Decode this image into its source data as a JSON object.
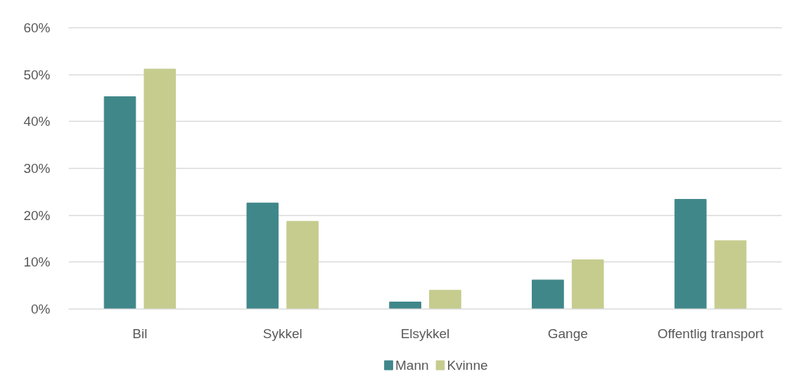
{
  "chart_data": {
    "type": "bar",
    "categories": [
      "Bil",
      "Sykkel",
      "Elsykkel",
      "Gange",
      "Offentlig transport"
    ],
    "series": [
      {
        "name": "Mann",
        "color": "#40878a",
        "values": [
          45.3,
          22.6,
          1.5,
          6.2,
          23.4
        ]
      },
      {
        "name": "Kvinne",
        "color": "#c6cc8e",
        "values": [
          51.2,
          18.7,
          4.0,
          10.5,
          14.6
        ]
      }
    ],
    "ylim": [
      0,
      60
    ],
    "yticks": [
      {
        "value": 0,
        "label": "0%"
      },
      {
        "value": 10,
        "label": "10%"
      },
      {
        "value": 20,
        "label": "20%"
      },
      {
        "value": 30,
        "label": "30%"
      },
      {
        "value": 40,
        "label": "40%"
      },
      {
        "value": 50,
        "label": "50%"
      },
      {
        "value": 60,
        "label": "60%"
      }
    ],
    "grid": "y",
    "legend": "bottom"
  }
}
